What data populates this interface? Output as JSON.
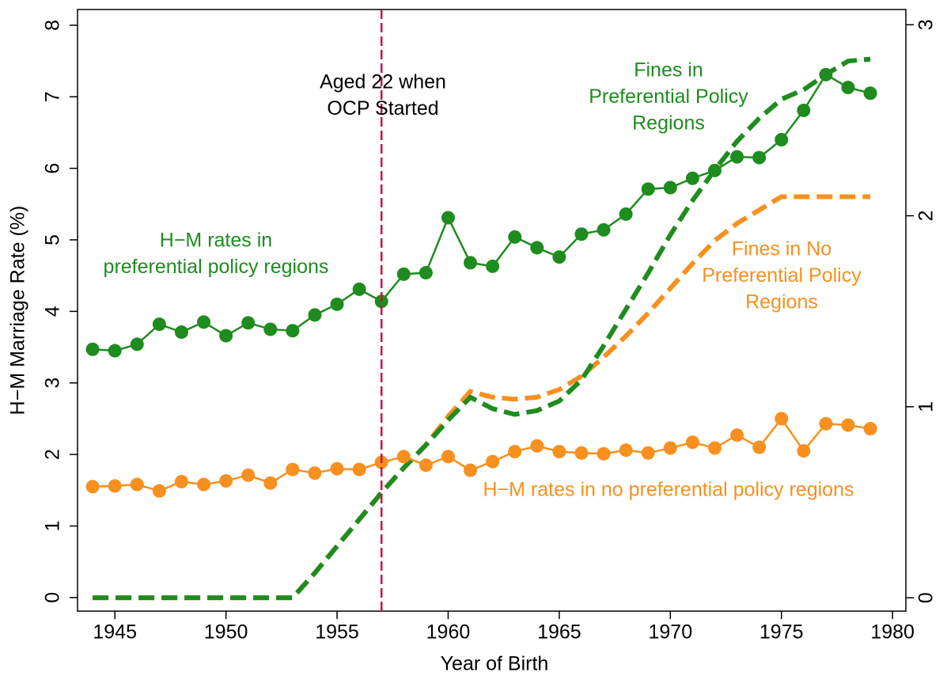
{
  "chart_data": {
    "type": "line",
    "x_label": "Year of Birth",
    "y_label": "H−M Marriage Rate (%)",
    "x": [
      1944,
      1945,
      1946,
      1947,
      1948,
      1949,
      1950,
      1951,
      1952,
      1953,
      1954,
      1955,
      1956,
      1957,
      1958,
      1959,
      1960,
      1961,
      1962,
      1963,
      1964,
      1965,
      1966,
      1967,
      1968,
      1969,
      1970,
      1971,
      1972,
      1973,
      1974,
      1975,
      1976,
      1977,
      1978,
      1979
    ],
    "xlim": [
      1943.32,
      1980.6
    ],
    "xticks": [
      1945,
      1950,
      1955,
      1960,
      1965,
      1970,
      1975,
      1980
    ],
    "ylim": [
      -0.19,
      8.22
    ],
    "yticks": [
      0,
      1,
      2,
      3,
      4,
      5,
      6,
      7,
      8
    ],
    "y2lim": [
      -0.07,
      3.08
    ],
    "y2ticks": [
      0,
      1,
      2,
      3
    ],
    "series": [
      {
        "color": "#f7901e",
        "axis": "y2",
        "style": "dashed",
        "values": [
          0,
          0,
          0,
          0,
          0,
          0,
          0,
          0,
          0,
          0,
          0.13,
          0.27,
          0.41,
          0.55,
          0.68,
          0.8,
          0.95,
          1.08,
          1.05,
          1.04,
          1.05,
          1.09,
          1.16,
          1.26,
          1.37,
          1.49,
          1.62,
          1.75,
          1.87,
          1.96,
          2.03,
          2.1,
          2.1,
          2.1,
          2.1,
          2.1
        ]
      },
      {
        "color": "#1e8c1e",
        "axis": "y2",
        "style": "dashed",
        "values": [
          0,
          0,
          0,
          0,
          0,
          0,
          0,
          0,
          0,
          0,
          0.13,
          0.27,
          0.41,
          0.55,
          0.68,
          0.8,
          0.93,
          1.05,
          0.99,
          0.96,
          0.98,
          1.03,
          1.14,
          1.32,
          1.51,
          1.7,
          1.9,
          2.08,
          2.24,
          2.39,
          2.51,
          2.61,
          2.66,
          2.74,
          2.81,
          2.82
        ]
      },
      {
        "color": "#1e8c1e",
        "style": "markers",
        "values": [
          3.47,
          3.45,
          3.54,
          3.82,
          3.71,
          3.85,
          3.66,
          3.84,
          3.75,
          3.73,
          3.95,
          4.1,
          4.31,
          4.14,
          4.52,
          4.54,
          5.31,
          4.68,
          4.63,
          5.04,
          4.89,
          4.76,
          5.08,
          5.14,
          5.36,
          5.71,
          5.73,
          5.86,
          5.97,
          6.16,
          6.15,
          6.4,
          6.81,
          7.31,
          7.13,
          7.05
        ]
      },
      {
        "color": "#f7901e",
        "style": "markers",
        "values": [
          1.55,
          1.56,
          1.58,
          1.49,
          1.62,
          1.58,
          1.63,
          1.71,
          1.6,
          1.79,
          1.74,
          1.8,
          1.79,
          1.89,
          1.97,
          1.85,
          1.97,
          1.78,
          1.9,
          2.04,
          2.12,
          2.04,
          2.02,
          2.01,
          2.06,
          2.02,
          2.09,
          2.17,
          2.09,
          2.27,
          2.1,
          2.5,
          2.05,
          2.43,
          2.41,
          2.36
        ]
      }
    ],
    "vline": {
      "x": 1957,
      "color": "#c8104b"
    },
    "annotations": [
      {
        "color": "#000000",
        "lines": [
          "Aged 22 when",
          "OCP Started"
        ]
      },
      {
        "color": "#1e8c1e",
        "lines": [
          "Fines in",
          "Preferential Policy",
          "Regions"
        ]
      },
      {
        "color": "#1e8c1e",
        "lines": [
          "H−M rates in",
          "preferential policy regions"
        ]
      },
      {
        "color": "#f7901e",
        "lines": [
          "Fines in No",
          "Preferential Policy",
          "Regions"
        ]
      },
      {
        "color": "#f7901e",
        "lines": [
          "H−M rates in no preferential policy regions"
        ]
      }
    ]
  }
}
